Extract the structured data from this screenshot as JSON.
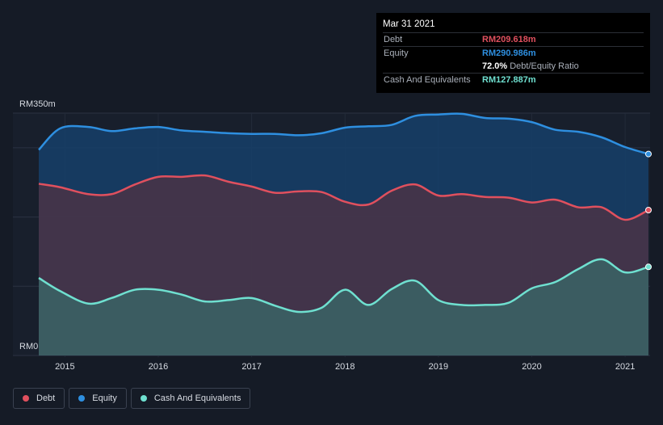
{
  "tooltip": {
    "date": "Mar 31 2021",
    "debt_label": "Debt",
    "debt_value": "RM209.618m",
    "equity_label": "Equity",
    "equity_value": "RM290.986m",
    "ratio_value": "72.0%",
    "ratio_label": "Debt/Equity Ratio",
    "cash_label": "Cash And Equivalents",
    "cash_value": "RM127.887m"
  },
  "legend": [
    {
      "label": "Debt",
      "color": "#e0505e"
    },
    {
      "label": "Equity",
      "color": "#2e8fe0"
    },
    {
      "label": "Cash And Equivalents",
      "color": "#6fe0d0"
    }
  ],
  "chart_data": {
    "type": "area",
    "y_tick_labels": [
      "RM350m",
      "RM0"
    ],
    "ylim": [
      0,
      350
    ],
    "xlim": [
      2014.72,
      2021.25
    ],
    "x_tick_labels": [
      "2015",
      "2016",
      "2017",
      "2018",
      "2019",
      "2020",
      "2021"
    ],
    "x_ticks": [
      2015,
      2016,
      2017,
      2018,
      2019,
      2020,
      2021
    ],
    "colors": {
      "Debt": "#e0505e",
      "Equity": "#2e8fe0",
      "Cash And Equivalents": "#6fe0d0"
    },
    "series": [
      {
        "name": "Equity",
        "x": [
          2014.72,
          2014.95,
          2015.25,
          2015.5,
          2015.75,
          2016.0,
          2016.25,
          2016.5,
          2016.75,
          2017.0,
          2017.25,
          2017.5,
          2017.75,
          2018.0,
          2018.25,
          2018.5,
          2018.75,
          2019.0,
          2019.25,
          2019.5,
          2019.75,
          2020.0,
          2020.25,
          2020.5,
          2020.75,
          2021.0,
          2021.25
        ],
        "y": [
          297,
          328,
          330,
          324,
          328,
          330,
          325,
          323,
          321,
          320,
          320,
          318,
          321,
          329,
          331,
          333,
          346,
          348,
          349,
          343,
          342,
          337,
          326,
          323,
          315,
          301,
          291
        ]
      },
      {
        "name": "Debt",
        "x": [
          2014.72,
          2014.95,
          2015.25,
          2015.5,
          2015.75,
          2016.0,
          2016.25,
          2016.5,
          2016.75,
          2017.0,
          2017.25,
          2017.5,
          2017.75,
          2018.0,
          2018.25,
          2018.5,
          2018.75,
          2019.0,
          2019.25,
          2019.5,
          2019.75,
          2020.0,
          2020.25,
          2020.5,
          2020.75,
          2021.0,
          2021.25
        ],
        "y": [
          248,
          243,
          233,
          233,
          247,
          258,
          258,
          260,
          251,
          244,
          235,
          237,
          236,
          222,
          218,
          238,
          247,
          231,
          233,
          229,
          228,
          221,
          225,
          214,
          214,
          196,
          210
        ]
      },
      {
        "name": "Cash And Equivalents",
        "x": [
          2014.72,
          2014.95,
          2015.25,
          2015.5,
          2015.75,
          2016.0,
          2016.25,
          2016.5,
          2016.75,
          2017.0,
          2017.25,
          2017.5,
          2017.75,
          2018.0,
          2018.25,
          2018.5,
          2018.75,
          2019.0,
          2019.25,
          2019.5,
          2019.75,
          2020.0,
          2020.25,
          2020.5,
          2020.75,
          2021.0,
          2021.25
        ],
        "y": [
          112,
          93,
          75,
          83,
          95,
          95,
          88,
          78,
          80,
          83,
          72,
          63,
          69,
          95,
          73,
          96,
          108,
          80,
          73,
          73,
          76,
          97,
          106,
          125,
          139,
          120,
          128
        ]
      }
    ]
  }
}
